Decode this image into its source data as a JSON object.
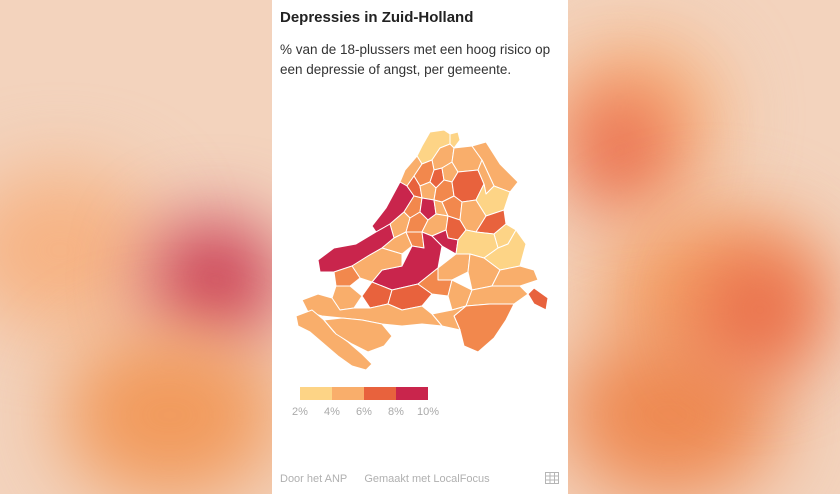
{
  "title": "Depressies in Zuid-Holland",
  "subtitle": "% van de 18-plussers met een hoog risico op een depressie of angst, per gemeente.",
  "legend": {
    "colors": [
      "#fdd486",
      "#f9ae6b",
      "#f2884d",
      "#e8623d",
      "#c9254c"
    ],
    "labels": [
      "2%",
      "4%",
      "6%",
      "8%",
      "10%"
    ]
  },
  "footer": {
    "source": "Door het ANP",
    "made_with": "Gemaakt met LocalFocus"
  },
  "icons": {
    "table": "table-icon"
  }
}
